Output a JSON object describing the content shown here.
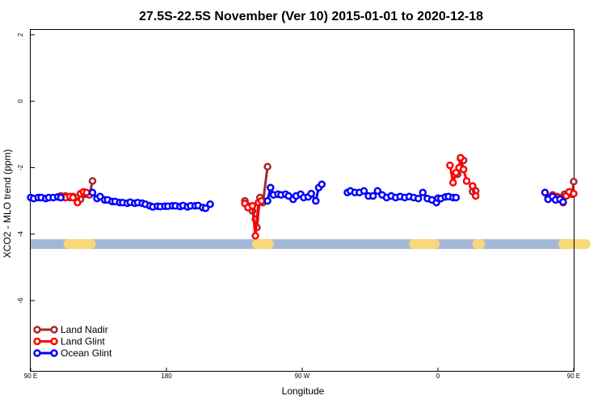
{
  "chart_data": {
    "type": "line",
    "title": "27.5S-22.5S November (Ver 10)   2015-01-01 to 2020-12-18",
    "xlabel": "Longitude",
    "ylabel": "XCO2 - MLO trend (ppm)",
    "xlim": [
      90,
      450
    ],
    "ylim": [
      -8,
      2.1
    ],
    "x_ticks": [
      {
        "value": 90,
        "label": "90 E"
      },
      {
        "value": 180,
        "label": "180"
      },
      {
        "value": 270,
        "label": "90 W"
      },
      {
        "value": 360,
        "label": "0"
      },
      {
        "value": 450,
        "label": "90 E"
      },
      {
        "value": 540,
        "label": "180"
      }
    ],
    "y_ticks": [
      {
        "value": 2,
        "label": "2"
      },
      {
        "value": 0,
        "label": "0"
      },
      {
        "value": -2,
        "label": "-2"
      },
      {
        "value": -4,
        "label": "-4"
      },
      {
        "value": -6,
        "label": "-6"
      }
    ],
    "legend_position": "bottom-left",
    "surface_band": {
      "y": -4.3,
      "ocean_color": "#a3b8d8",
      "land_color": "#f8d878",
      "land_ranges": [
        [
          115,
          130
        ],
        [
          240,
          248
        ],
        [
          344,
          358
        ],
        [
          386,
          388
        ],
        [
          443,
          458
        ]
      ]
    },
    "series": [
      {
        "name": "Land Nadir",
        "color": "#a52a2a",
        "segments": [
          [
            [
              113,
              -2.85
            ],
            [
              116,
              -2.9
            ],
            [
              118,
              -2.87
            ],
            [
              121,
              -2.9
            ],
            [
              123,
              -2.95
            ],
            [
              125,
              -2.8
            ],
            [
              127,
              -2.8
            ],
            [
              129,
              -2.82
            ],
            [
              131,
              -2.4
            ]
          ],
          [
            [
              232,
              -3.0
            ],
            [
              234,
              -3.15
            ],
            [
              237,
              -3.3
            ],
            [
              239,
              -3.55
            ],
            [
              240,
              -3.8
            ],
            [
              242,
              -2.9
            ],
            [
              244,
              -3.05
            ],
            [
              247,
              -1.97
            ]
          ],
          [
            [
              373,
              -2.2
            ],
            [
              375,
              -1.72
            ],
            [
              377,
              -1.78
            ]
          ],
          [
            [
              383,
              -2.72
            ],
            [
              385,
              -2.7
            ]
          ],
          [
            [
              433,
              -2.9
            ],
            [
              436,
              -2.85
            ],
            [
              439,
              -2.87
            ],
            [
              441,
              -2.9
            ],
            [
              444,
              -2.8
            ],
            [
              446,
              -2.82
            ],
            [
              449,
              -2.8
            ],
            [
              450,
              -2.42
            ]
          ]
        ]
      },
      {
        "name": "Land Glint",
        "color": "#ff0000",
        "segments": [
          [
            [
              110,
              -2.85
            ],
            [
              113,
              -2.9
            ],
            [
              116,
              -2.87
            ],
            [
              118,
              -2.9
            ],
            [
              121,
              -3.05
            ],
            [
              123,
              -2.78
            ],
            [
              125,
              -2.73
            ],
            [
              127,
              -2.75
            ]
          ],
          [
            [
              232,
              -3.08
            ],
            [
              234,
              -3.2
            ],
            [
              237,
              -3.15
            ],
            [
              239,
              -4.05
            ],
            [
              241,
              -3.05
            ],
            [
              243,
              -3.0
            ]
          ],
          [
            [
              368,
              -1.93
            ],
            [
              370,
              -2.45
            ],
            [
              372,
              -2.15
            ],
            [
              374,
              -2.0
            ],
            [
              375,
              -1.7
            ],
            [
              377,
              -2.05
            ],
            [
              379,
              -2.4
            ]
          ],
          [
            [
              383,
              -2.55
            ],
            [
              385,
              -2.85
            ]
          ],
          [
            [
              434,
              -2.9
            ],
            [
              436,
              -2.82
            ],
            [
              438,
              -2.9
            ],
            [
              440,
              -2.9
            ],
            [
              443,
              -3.05
            ],
            [
              445,
              -2.85
            ],
            [
              447,
              -2.73
            ],
            [
              450,
              -2.78
            ]
          ]
        ]
      },
      {
        "name": "Ocean Glint",
        "color": "#0000ff",
        "segments": [
          [
            [
              90,
              -2.9
            ],
            [
              92,
              -2.93
            ],
            [
              95,
              -2.9
            ],
            [
              97,
              -2.9
            ],
            [
              100,
              -2.93
            ],
            [
              102,
              -2.9
            ],
            [
              105,
              -2.9
            ],
            [
              108,
              -2.88
            ],
            [
              110,
              -2.9
            ]
          ],
          [
            [
              131,
              -2.75
            ],
            [
              134,
              -2.93
            ],
            [
              136,
              -2.87
            ],
            [
              139,
              -2.97
            ],
            [
              141,
              -2.97
            ],
            [
              144,
              -3.02
            ],
            [
              146,
              -3.02
            ],
            [
              149,
              -3.05
            ],
            [
              151,
              -3.05
            ],
            [
              154,
              -3.07
            ],
            [
              156,
              -3.04
            ],
            [
              159,
              -3.07
            ],
            [
              161,
              -3.05
            ],
            [
              164,
              -3.07
            ],
            [
              166,
              -3.1
            ],
            [
              169,
              -3.15
            ],
            [
              171,
              -3.18
            ],
            [
              174,
              -3.16
            ],
            [
              176,
              -3.17
            ],
            [
              179,
              -3.16
            ],
            [
              181,
              -3.16
            ],
            [
              184,
              -3.15
            ],
            [
              186,
              -3.15
            ],
            [
              189,
              -3.17
            ],
            [
              191,
              -3.14
            ],
            [
              194,
              -3.18
            ],
            [
              196,
              -3.15
            ],
            [
              199,
              -3.15
            ],
            [
              201,
              -3.14
            ],
            [
              204,
              -3.2
            ],
            [
              206,
              -3.22
            ],
            [
              209,
              -3.1
            ]
          ],
          [
            [
              247,
              -3.0
            ],
            [
              249,
              -2.6
            ],
            [
              251,
              -2.82
            ],
            [
              254,
              -2.8
            ],
            [
              256,
              -2.82
            ],
            [
              259,
              -2.8
            ],
            [
              261,
              -2.85
            ],
            [
              264,
              -2.95
            ],
            [
              266,
              -2.85
            ],
            [
              269,
              -2.8
            ],
            [
              271,
              -2.9
            ],
            [
              274,
              -2.88
            ],
            [
              276,
              -2.78
            ],
            [
              279,
              -3.0
            ],
            [
              281,
              -2.6
            ],
            [
              283,
              -2.5
            ]
          ],
          [
            [
              300,
              -2.75
            ],
            [
              302,
              -2.7
            ],
            [
              305,
              -2.75
            ],
            [
              308,
              -2.75
            ],
            [
              311,
              -2.7
            ],
            [
              314,
              -2.85
            ],
            [
              317,
              -2.85
            ],
            [
              320,
              -2.7
            ],
            [
              323,
              -2.82
            ],
            [
              326,
              -2.9
            ],
            [
              329,
              -2.85
            ],
            [
              332,
              -2.9
            ],
            [
              335,
              -2.87
            ],
            [
              338,
              -2.9
            ],
            [
              341,
              -2.87
            ],
            [
              344,
              -2.9
            ],
            [
              347,
              -2.93
            ],
            [
              350,
              -2.75
            ],
            [
              353,
              -2.93
            ],
            [
              356,
              -2.97
            ],
            [
              359,
              -3.05
            ]
          ],
          [
            [
              360,
              -2.92
            ],
            [
              362,
              -2.93
            ],
            [
              365,
              -2.88
            ],
            [
              367,
              -2.87
            ],
            [
              370,
              -2.9
            ],
            [
              372,
              -2.9
            ]
          ],
          [
            [
              431,
              -2.75
            ],
            [
              433,
              -2.95
            ],
            [
              436,
              -2.87
            ],
            [
              438,
              -2.97
            ],
            [
              441,
              -2.95
            ],
            [
              443,
              -3.03
            ]
          ]
        ]
      }
    ]
  }
}
